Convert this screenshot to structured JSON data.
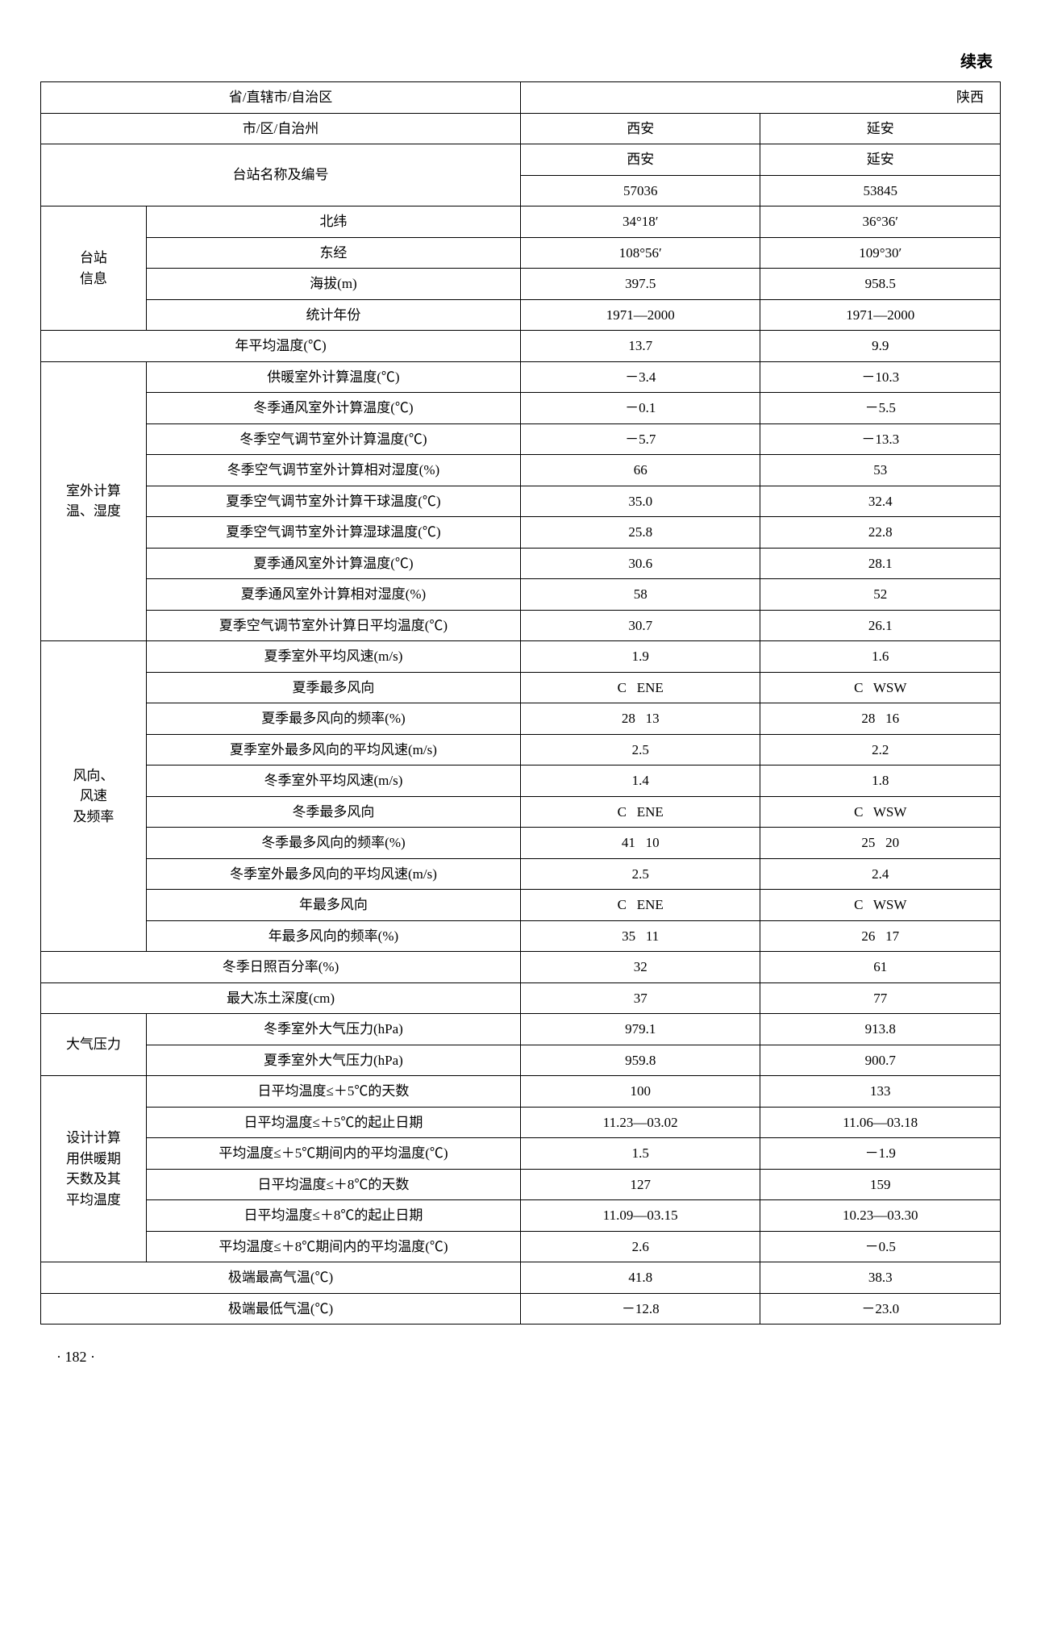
{
  "header": "续表",
  "page_number": "· 182 ·",
  "colors": {
    "border": "#000000",
    "bg": "#ffffff",
    "text": "#000000"
  },
  "typography": {
    "font_family": "SimSun",
    "base_fontsize_pt": 13
  },
  "top": {
    "province_label": "省/直辖市/自治区",
    "province_val": "陕西",
    "city_label": "市/区/自治州",
    "station_label": "台站名称及编号"
  },
  "cities": {
    "c1": "西安",
    "c2": "延安"
  },
  "station_names": {
    "c1": "西安",
    "c2": "延安"
  },
  "station_codes": {
    "c1": "57036",
    "c2": "53845"
  },
  "station_info": {
    "group_label": "台站\n信息",
    "rows": {
      "lat": {
        "label": "北纬",
        "c1": "34°18′",
        "c2": "36°36′"
      },
      "lon": {
        "label": "东经",
        "c1": "108°56′",
        "c2": "109°30′"
      },
      "alt": {
        "label": "海拔(m)",
        "c1": "397.5",
        "c2": "958.5"
      },
      "years": {
        "label": "统计年份",
        "c1": "1971—2000",
        "c2": "1971—2000"
      }
    }
  },
  "annual_temp": {
    "label": "年平均温度(℃)",
    "c1": "13.7",
    "c2": "9.9"
  },
  "outdoor": {
    "group_label": "室外计算\n温、湿度",
    "rows": {
      "r1": {
        "label": "供暖室外计算温度(℃)",
        "c1": "－3.4",
        "c2": "－10.3"
      },
      "r2": {
        "label": "冬季通风室外计算温度(℃)",
        "c1": "－0.1",
        "c2": "－5.5"
      },
      "r3": {
        "label": "冬季空气调节室外计算温度(℃)",
        "c1": "－5.7",
        "c2": "－13.3"
      },
      "r4": {
        "label": "冬季空气调节室外计算相对湿度(%)",
        "c1": "66",
        "c2": "53"
      },
      "r5": {
        "label": "夏季空气调节室外计算干球温度(℃)",
        "c1": "35.0",
        "c2": "32.4"
      },
      "r6": {
        "label": "夏季空气调节室外计算湿球温度(℃)",
        "c1": "25.8",
        "c2": "22.8"
      },
      "r7": {
        "label": "夏季通风室外计算温度(℃)",
        "c1": "30.6",
        "c2": "28.1"
      },
      "r8": {
        "label": "夏季通风室外计算相对湿度(%)",
        "c1": "58",
        "c2": "52"
      },
      "r9": {
        "label": "夏季空气调节室外计算日平均温度(℃)",
        "c1": "30.7",
        "c2": "26.1"
      }
    }
  },
  "wind": {
    "group_label": "风向、\n风速\n及频率",
    "rows": {
      "r1": {
        "label": "夏季室外平均风速(m/s)",
        "c1": "1.9",
        "c2": "1.6"
      },
      "r2": {
        "label": "夏季最多风向",
        "c1": "C   ENE",
        "c2": "C   WSW"
      },
      "r3": {
        "label": "夏季最多风向的频率(%)",
        "c1": "28   13",
        "c2": "28   16"
      },
      "r4": {
        "label": "夏季室外最多风向的平均风速(m/s)",
        "c1": "2.5",
        "c2": "2.2"
      },
      "r5": {
        "label": "冬季室外平均风速(m/s)",
        "c1": "1.4",
        "c2": "1.8"
      },
      "r6": {
        "label": "冬季最多风向",
        "c1": "C   ENE",
        "c2": "C   WSW"
      },
      "r7": {
        "label": "冬季最多风向的频率(%)",
        "c1": "41   10",
        "c2": "25   20"
      },
      "r8": {
        "label": "冬季室外最多风向的平均风速(m/s)",
        "c1": "2.5",
        "c2": "2.4"
      },
      "r9": {
        "label": "年最多风向",
        "c1": "C   ENE",
        "c2": "C   WSW"
      },
      "r10": {
        "label": "年最多风向的频率(%)",
        "c1": "35   11",
        "c2": "26   17"
      }
    }
  },
  "sun": {
    "label": "冬季日照百分率(%)",
    "c1": "32",
    "c2": "61"
  },
  "frost": {
    "label": "最大冻土深度(cm)",
    "c1": "37",
    "c2": "77"
  },
  "pressure": {
    "group_label": "大气压力",
    "rows": {
      "winter": {
        "label": "冬季室外大气压力(hPa)",
        "c1": "979.1",
        "c2": "913.8"
      },
      "summer": {
        "label": "夏季室外大气压力(hPa)",
        "c1": "959.8",
        "c2": "900.7"
      }
    }
  },
  "heating": {
    "group_label": "设计计算\n用供暖期\n天数及其\n平均温度",
    "rows": {
      "r1": {
        "label": "日平均温度≤＋5℃的天数",
        "c1": "100",
        "c2": "133"
      },
      "r2": {
        "label": "日平均温度≤＋5℃的起止日期",
        "c1": "11.23—03.02",
        "c2": "11.06—03.18"
      },
      "r3": {
        "label": "平均温度≤＋5℃期间内的平均温度(℃)",
        "c1": "1.5",
        "c2": "－1.9"
      },
      "r4": {
        "label": "日平均温度≤＋8℃的天数",
        "c1": "127",
        "c2": "159"
      },
      "r5": {
        "label": "日平均温度≤＋8℃的起止日期",
        "c1": "11.09—03.15",
        "c2": "10.23—03.30"
      },
      "r6": {
        "label": "平均温度≤＋8℃期间内的平均温度(℃)",
        "c1": "2.6",
        "c2": "－0.5"
      }
    }
  },
  "extreme_high": {
    "label": "极端最高气温(℃)",
    "c1": "41.8",
    "c2": "38.3"
  },
  "extreme_low": {
    "label": "极端最低气温(℃)",
    "c1": "－12.8",
    "c2": "－23.0"
  }
}
